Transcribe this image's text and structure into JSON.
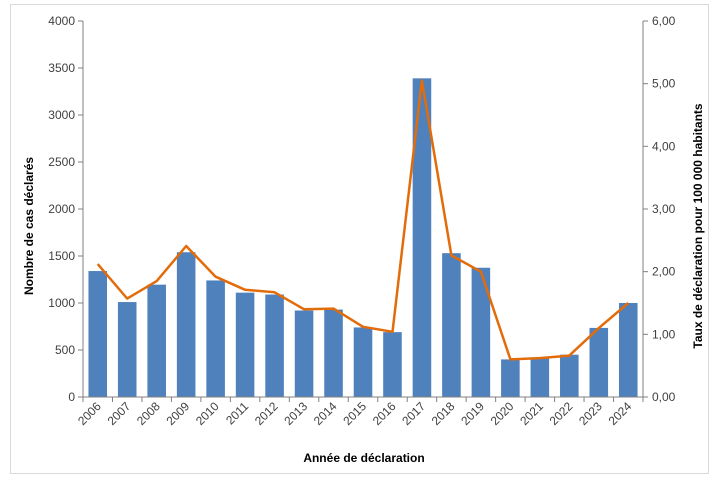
{
  "chart_data": {
    "type": "bar",
    "categories": [
      "2006",
      "2007",
      "2008",
      "2009",
      "2010",
      "2011",
      "2012",
      "2013",
      "2014",
      "2015",
      "2016",
      "2017",
      "2018",
      "2019",
      "2020",
      "2021",
      "2022",
      "2023",
      "2024"
    ],
    "series": [
      {
        "type": "bar",
        "axis": "left",
        "color": "#4f81bd",
        "values": [
          1340,
          1010,
          1195,
          1540,
          1240,
          1110,
          1090,
          920,
          930,
          740,
          690,
          3390,
          1530,
          1375,
          400,
          410,
          450,
          735,
          1000
        ]
      },
      {
        "type": "line",
        "axis": "right",
        "color": "#e36c0a",
        "values": [
          2.12,
          1.57,
          1.85,
          2.41,
          1.92,
          1.71,
          1.67,
          1.4,
          1.41,
          1.12,
          1.04,
          5.05,
          2.26,
          2.0,
          0.6,
          0.62,
          0.66,
          1.1,
          1.5
        ]
      }
    ],
    "xlabel": "Année de déclaration",
    "ylabel": "Nombre de cas déclarés",
    "y2label": "Taux de déclaration pour 100 000 habitants",
    "ylim": [
      0,
      4000
    ],
    "y2lim": [
      0,
      6
    ],
    "yticks": [
      "0",
      "500",
      "1000",
      "1500",
      "2000",
      "2500",
      "3000",
      "3500",
      "4000"
    ],
    "y2ticks": [
      "0,00",
      "1,00",
      "2,00",
      "3,00",
      "4,00",
      "5,00",
      "6,00"
    ],
    "grid": false,
    "legend": "none"
  }
}
